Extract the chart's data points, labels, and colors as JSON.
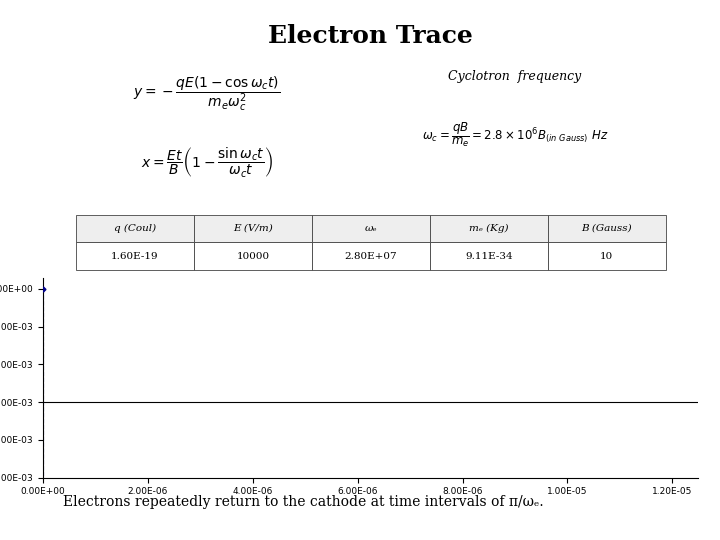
{
  "title": "Electron Trace",
  "title_fontsize": 18,
  "title_fontweight": "bold",
  "bg_color": "#ffffff",
  "table_headers": [
    "q (Coul)",
    "E (V/m)",
    "ωₑ",
    "mₑ (Kg)",
    "B (Gauss)"
  ],
  "table_values": [
    "1.60E-19",
    "10000",
    "2.80E+07",
    "9.11E-34",
    "10"
  ],
  "q": 1.6e-19,
  "E": 10000,
  "omega_c": 28000000.0,
  "m_e": 9.11e-34,
  "B": 10,
  "plot_color": "#00008B",
  "plot_marker": "D",
  "plot_markersize": 2.5,
  "plot_linewidth": 0.8,
  "x_min": 0.0,
  "x_max": 1.25e-05,
  "y_min": -0.005,
  "y_max": 0.0003,
  "hline_y": -0.003,
  "caption": "Electrons repeatedly return to the cathode at time intervals of π/ωₑ.",
  "caption_fontsize": 10,
  "cyclotron_label": "Cyclotron  frequency",
  "cyclotron_label_fontstyle": "italic",
  "cyclotron_label_fontsize": 9
}
